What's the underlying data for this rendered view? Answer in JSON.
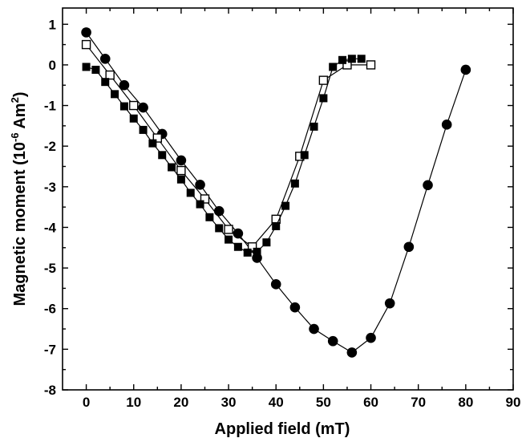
{
  "chart_data": {
    "type": "scatter",
    "xlabel": "Applied field  (mT)",
    "ylabel_main": "Magnetic moment  (10",
    "ylabel_exp": "-6",
    "ylabel_unit": " Am",
    "ylabel_sq": "2",
    "ylabel_close": ")",
    "xlim": [
      -5,
      90
    ],
    "ylim": [
      -8,
      1.4
    ],
    "xticks": [
      0,
      10,
      20,
      30,
      40,
      50,
      60,
      70,
      80,
      90
    ],
    "yticks": [
      1,
      0,
      -1,
      -2,
      -3,
      -4,
      -5,
      -6,
      -7,
      -8
    ],
    "grid": false,
    "series": [
      {
        "marker": "filled-circle",
        "connected": true,
        "x": [
          0,
          4,
          8,
          12,
          16,
          20,
          24,
          28,
          32,
          36,
          40,
          44,
          48,
          52,
          56,
          60,
          64,
          68,
          72,
          76,
          80
        ],
        "y": [
          0.8,
          0.15,
          -0.5,
          -1.05,
          -1.7,
          -2.35,
          -2.95,
          -3.6,
          -4.15,
          -4.75,
          -5.4,
          -5.97,
          -6.5,
          -6.8,
          -7.08,
          -6.72,
          -5.87,
          -4.48,
          -2.96,
          -1.47,
          -0.12
        ]
      },
      {
        "marker": "open-square",
        "connected": true,
        "x": [
          0,
          5,
          10,
          15,
          20,
          25,
          30,
          35,
          40,
          45,
          50,
          55,
          60
        ],
        "y": [
          0.5,
          -0.25,
          -1.0,
          -1.8,
          -2.6,
          -3.3,
          -4.05,
          -4.48,
          -3.8,
          -2.25,
          -0.38,
          0.0,
          0.0
        ]
      },
      {
        "marker": "filled-square",
        "connected": true,
        "x": [
          0,
          2,
          4,
          6,
          8,
          10,
          12,
          14,
          16,
          18,
          20,
          22,
          24,
          26,
          28,
          30,
          32,
          34,
          36,
          38,
          40,
          42,
          44,
          46,
          48,
          50,
          52,
          54,
          56,
          58
        ],
        "y": [
          -0.05,
          -0.12,
          -0.42,
          -0.72,
          -1.02,
          -1.32,
          -1.6,
          -1.93,
          -2.22,
          -2.52,
          -2.82,
          -3.15,
          -3.43,
          -3.75,
          -4.02,
          -4.3,
          -4.48,
          -4.62,
          -4.6,
          -4.37,
          -3.97,
          -3.47,
          -2.92,
          -2.22,
          -1.52,
          -0.82,
          -0.05,
          0.12,
          0.15,
          0.15
        ]
      }
    ]
  }
}
